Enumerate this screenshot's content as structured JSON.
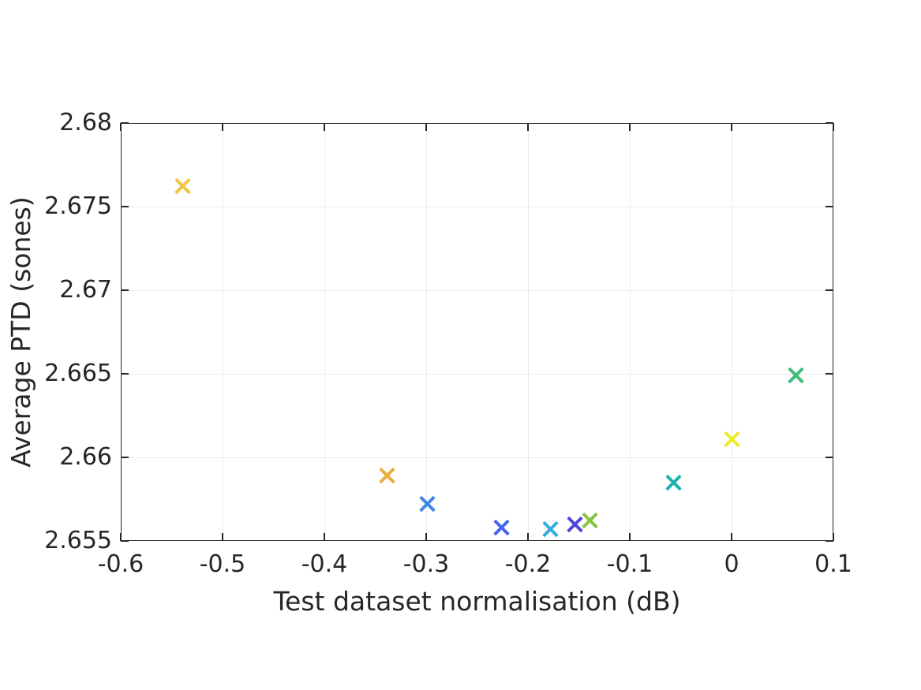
{
  "figure": {
    "background_color": "#ffffff",
    "axes_color": "#262626",
    "grid_color": "#ebebeb",
    "text_color": "#262626"
  },
  "chart_data": {
    "type": "scatter",
    "title": "",
    "xlabel": "Test dataset normalisation (dB)",
    "ylabel": "Average PTD (sones)",
    "xlim": [
      -0.6,
      0.1
    ],
    "ylim": [
      2.655,
      2.68
    ],
    "grid": true,
    "legend": "none",
    "marker_style": "x",
    "xticks": [
      {
        "value": -0.6,
        "label": "-0.6"
      },
      {
        "value": -0.5,
        "label": "-0.5"
      },
      {
        "value": -0.4,
        "label": "-0.4"
      },
      {
        "value": -0.3,
        "label": "-0.3"
      },
      {
        "value": -0.2,
        "label": "-0.2"
      },
      {
        "value": -0.1,
        "label": "-0.1"
      },
      {
        "value": 0,
        "label": "0"
      },
      {
        "value": 0.1,
        "label": "0.1"
      }
    ],
    "yticks": [
      {
        "value": 2.655,
        "label": "2.655"
      },
      {
        "value": 2.66,
        "label": "2.66"
      },
      {
        "value": 2.665,
        "label": "2.665"
      },
      {
        "value": 2.67,
        "label": "2.67"
      },
      {
        "value": 2.675,
        "label": "2.675"
      },
      {
        "value": 2.68,
        "label": "2.68"
      }
    ],
    "points": [
      {
        "x": -0.539,
        "y": 2.6762,
        "color": "#f2c53d"
      },
      {
        "x": -0.338,
        "y": 2.6589,
        "color": "#eaae3e"
      },
      {
        "x": -0.299,
        "y": 2.6572,
        "color": "#3e87e3"
      },
      {
        "x": -0.226,
        "y": 2.6558,
        "color": "#4465ec"
      },
      {
        "x": -0.178,
        "y": 2.6557,
        "color": "#30afdc"
      },
      {
        "x": -0.154,
        "y": 2.656,
        "color": "#5244dc"
      },
      {
        "x": -0.139,
        "y": 2.6562,
        "color": "#86c440"
      },
      {
        "x": -0.057,
        "y": 2.6585,
        "color": "#1ab3ae"
      },
      {
        "x": 0.0,
        "y": 2.6611,
        "color": "#efeb2a"
      },
      {
        "x": 0.063,
        "y": 2.6649,
        "color": "#3fbd7d"
      }
    ]
  }
}
